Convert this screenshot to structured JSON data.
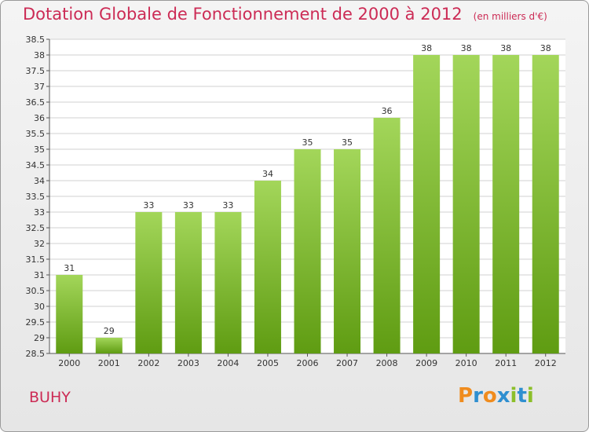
{
  "title": "Dotation Globale de Fonctionnement de 2000 à 2012",
  "unit": "(en milliers d'€)",
  "place": "BUHY",
  "logo": {
    "text": "Proxiti",
    "letters": [
      {
        "ch": "P",
        "color": "#f08c1e"
      },
      {
        "ch": "r",
        "color": "#2f8fd0"
      },
      {
        "ch": "o",
        "color": "#f08c1e"
      },
      {
        "ch": "x",
        "color": "#2f8fd0"
      },
      {
        "ch": "i",
        "color": "#8cbf2a"
      },
      {
        "ch": "t",
        "color": "#2f8fd0"
      },
      {
        "ch": "i",
        "color": "#8cbf2a"
      }
    ]
  },
  "colors": {
    "bar_top": "#a3d65a",
    "bar_bottom": "#5f9c12",
    "title": "#cc2b55",
    "grid": "#d2d2d2"
  },
  "chart_data": {
    "type": "bar",
    "title": "Dotation Globale de Fonctionnement de 2000 à 2012",
    "xlabel": "",
    "ylabel": "",
    "ylim": [
      28.5,
      38.5
    ],
    "ytick_step": 0.5,
    "grid": true,
    "categories": [
      "2000",
      "2001",
      "2002",
      "2003",
      "2004",
      "2005",
      "2006",
      "2007",
      "2008",
      "2009",
      "2010",
      "2011",
      "2012"
    ],
    "values": [
      31,
      29,
      33,
      33,
      33,
      34,
      35,
      35,
      36,
      38,
      38,
      38,
      38
    ]
  }
}
